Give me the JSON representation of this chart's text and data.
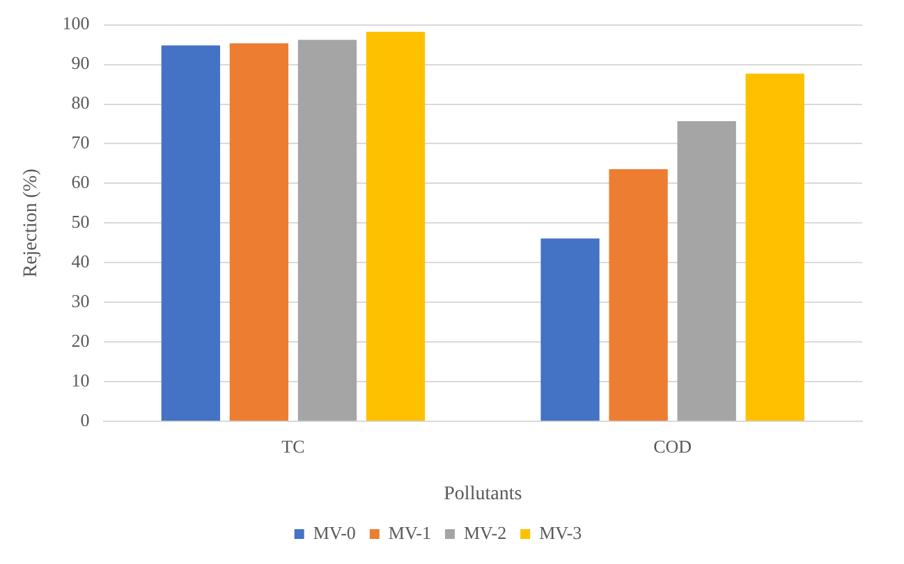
{
  "chart_data": {
    "type": "bar",
    "xlabel": "Pollutants",
    "ylabel": "Rejection (%)",
    "categories": [
      "TC",
      "COD"
    ],
    "series": [
      {
        "name": "MV-0",
        "color": "#4472c4",
        "values": [
          94.8,
          46.1
        ]
      },
      {
        "name": "MV-1",
        "color": "#ed7d31",
        "values": [
          95.3,
          63.6
        ]
      },
      {
        "name": "MV-2",
        "color": "#a5a5a5",
        "values": [
          96.2,
          75.7
        ]
      },
      {
        "name": "MV-3",
        "color": "#ffc000",
        "values": [
          98.2,
          87.7
        ]
      }
    ],
    "ylim": [
      0,
      100
    ],
    "yticks": [
      0,
      10,
      20,
      30,
      40,
      50,
      60,
      70,
      80,
      90,
      100
    ],
    "grid": "y",
    "legend": "bottom"
  }
}
